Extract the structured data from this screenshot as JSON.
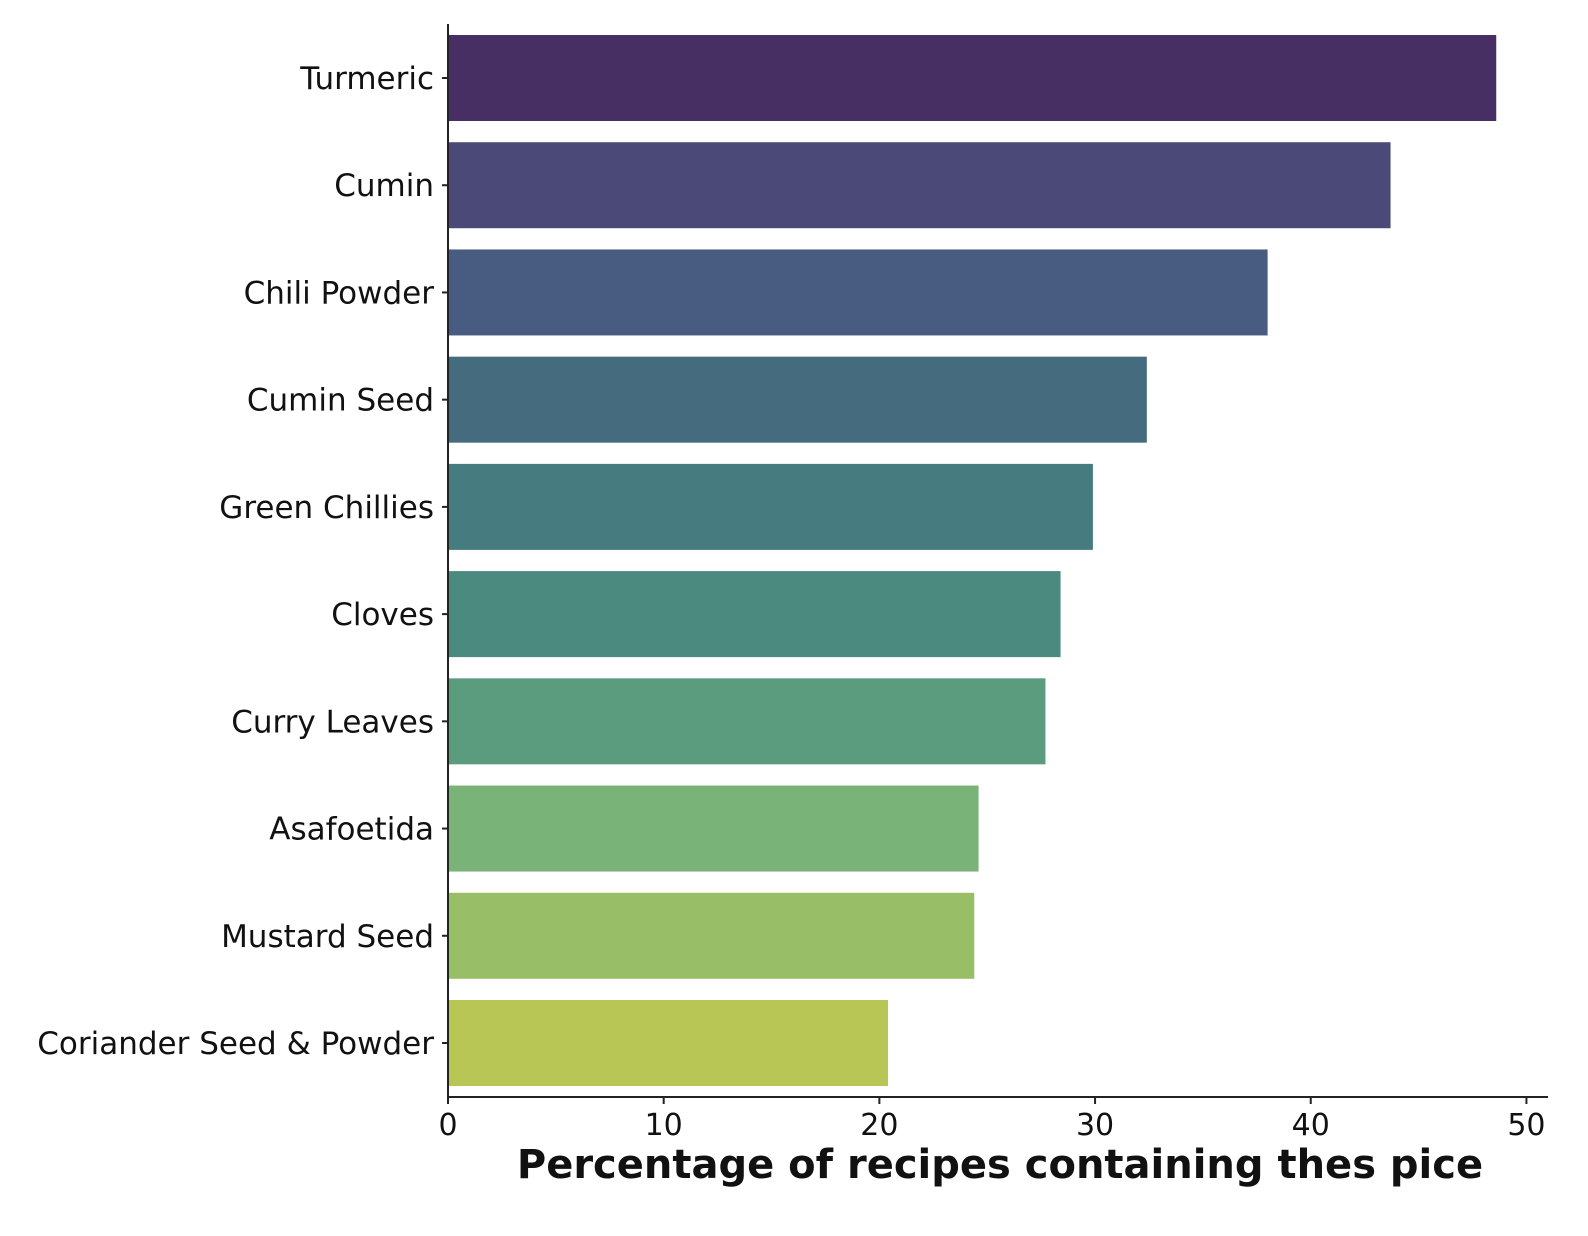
{
  "chart_data": {
    "type": "bar",
    "orientation": "horizontal",
    "title": "",
    "xlabel": "Percentage of recipes containing thes pice",
    "ylabel": "",
    "xlim": [
      0,
      51
    ],
    "x_ticks": [
      0,
      10,
      20,
      30,
      40,
      50
    ],
    "grid": false,
    "legend": "none",
    "categories": [
      "Turmeric",
      "Cumin",
      "Chili Powder",
      "Cumin Seed",
      "Green Chillies",
      "Cloves",
      "Curry Leaves",
      "Asafoetida",
      "Mustard Seed",
      "Coriander Seed & Powder"
    ],
    "values": [
      48.6,
      43.7,
      38.0,
      32.4,
      29.9,
      28.4,
      27.7,
      24.6,
      24.4,
      20.4
    ],
    "colors": [
      "#472f63",
      "#4a4978",
      "#475c80",
      "#446b7e",
      "#467b7f",
      "#4b8a7e",
      "#5a9c7d",
      "#79b377",
      "#98bf68",
      "#b8c655"
    ]
  }
}
